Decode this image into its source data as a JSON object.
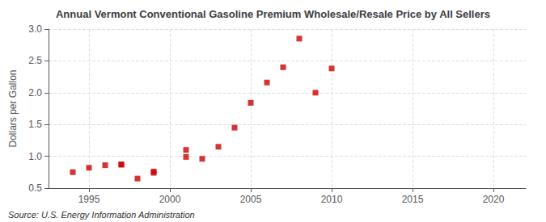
{
  "chart_data": {
    "type": "scatter",
    "title": "Annual Vermont Conventional Gasoline Premium Wholesale/Resale Price by All Sellers",
    "ylabel": "Dollars per Gallon",
    "annotations": [
      "Source: U.S. Energy Information Administration"
    ],
    "x": [
      1994,
      1995,
      1996,
      1997,
      1997,
      1998,
      1999,
      1999,
      2001,
      2001,
      2002,
      2003,
      2004,
      2005,
      2006,
      2007,
      2008,
      2009,
      2010
    ],
    "values": [
      0.75,
      0.82,
      0.86,
      0.87,
      0.87,
      0.65,
      0.74,
      0.76,
      1.1,
      0.99,
      0.96,
      1.15,
      1.45,
      1.84,
      2.16,
      2.4,
      2.85,
      2.0,
      2.38
    ],
    "color": "#cc0000",
    "marker": "square",
    "xlim": [
      1992.5,
      2022
    ],
    "ylim": [
      0.5,
      3.0
    ],
    "xticks": [
      1995,
      2000,
      2005,
      2010,
      2015,
      2020
    ],
    "yticks": [
      0.5,
      {
        "value": 1.0,
        "label": "1.0"
      },
      1.5,
      {
        "value": 2.0,
        "label": "2.0"
      },
      2.5,
      {
        "value": 3.0,
        "label": "3.0"
      }
    ],
    "grid": true
  }
}
